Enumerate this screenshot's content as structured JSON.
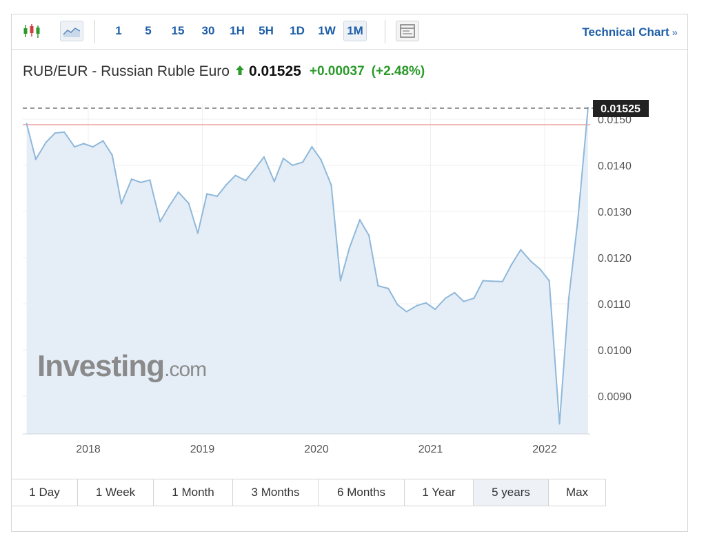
{
  "toolbar": {
    "chart_type_icons": [
      "candlestick-icon",
      "area-chart-icon"
    ],
    "active_chart_type": "area-chart-icon",
    "intervals": [
      "1",
      "5",
      "15",
      "30",
      "1H",
      "5H",
      "1D",
      "1W",
      "1M"
    ],
    "active_interval": "1M",
    "settings_icon": "chart-settings-icon",
    "technical_link": "Technical Chart",
    "technical_link_suffix": "»"
  },
  "quote": {
    "name": "RUB/EUR - Russian Ruble Euro",
    "direction_icon": "up-arrow-icon",
    "price": "0.01525",
    "change": "+0.00037",
    "change_percent": "(+2.48%)"
  },
  "watermark": {
    "brand": "Investing",
    "suffix": ".com"
  },
  "ranges": [
    "1 Day",
    "1 Week",
    "1 Month",
    "3 Months",
    "6 Months",
    "1 Year",
    "5 years",
    "Max"
  ],
  "active_range": "5 years",
  "colors": {
    "accent": "#1d5ea8",
    "positive": "#2a9a2a",
    "line": "#8fb8da",
    "area": "#e5eef7",
    "reference_line": "#f2b8b8"
  },
  "chart_data": {
    "type": "area",
    "title": "RUB/EUR - Russian Ruble Euro",
    "x_tick_labels": [
      "2018",
      "2019",
      "2020",
      "2021",
      "2022"
    ],
    "y_tick_labels": [
      "0.0090",
      "0.0100",
      "0.0110",
      "0.0120",
      "0.0130",
      "0.0140",
      "0.0150"
    ],
    "ylim": [
      0.0082,
      0.0155
    ],
    "xlim": [
      2017.45,
      2022.45
    ],
    "grid": true,
    "current_price_label": "0.01525",
    "reference_value": 0.01488,
    "series": [
      {
        "x": [
          2017.46,
          2017.54,
          2017.63,
          2017.71,
          2017.79,
          2017.88,
          2017.96,
          2018.04,
          2018.13,
          2018.21,
          2018.29,
          2018.38,
          2018.46,
          2018.54,
          2018.63,
          2018.71,
          2018.79,
          2018.88,
          2018.96,
          2019.04,
          2019.13,
          2019.21,
          2019.29,
          2019.38,
          2019.46,
          2019.54,
          2019.63,
          2019.71,
          2019.79,
          2019.88,
          2019.96,
          2020.04,
          2020.13,
          2020.21,
          2020.29,
          2020.38,
          2020.46,
          2020.54,
          2020.63,
          2020.71,
          2020.79,
          2020.88,
          2020.96,
          2021.04,
          2021.13,
          2021.21,
          2021.29,
          2021.38,
          2021.46,
          2021.54,
          2021.63,
          2021.71,
          2021.79,
          2021.88,
          2021.96,
          2022.04,
          2022.13,
          2022.21,
          2022.29,
          2022.38
        ],
        "y": [
          0.0149,
          0.01413,
          0.0145,
          0.0147,
          0.01472,
          0.0144,
          0.01447,
          0.0144,
          0.01453,
          0.01422,
          0.01317,
          0.0137,
          0.01363,
          0.01368,
          0.01278,
          0.01312,
          0.01342,
          0.01318,
          0.01253,
          0.01338,
          0.01333,
          0.01358,
          0.01378,
          0.01367,
          0.01392,
          0.01418,
          0.01365,
          0.01415,
          0.014,
          0.01407,
          0.0144,
          0.01412,
          0.01357,
          0.0115,
          0.01222,
          0.01282,
          0.01248,
          0.01139,
          0.01133,
          0.01098,
          0.01083,
          0.01096,
          0.01102,
          0.01088,
          0.01112,
          0.01124,
          0.01105,
          0.01112,
          0.0115,
          0.01149,
          0.01148,
          0.01185,
          0.01217,
          0.01192,
          0.01175,
          0.0115,
          0.0084,
          0.0111,
          0.0128,
          0.01525
        ]
      }
    ]
  }
}
